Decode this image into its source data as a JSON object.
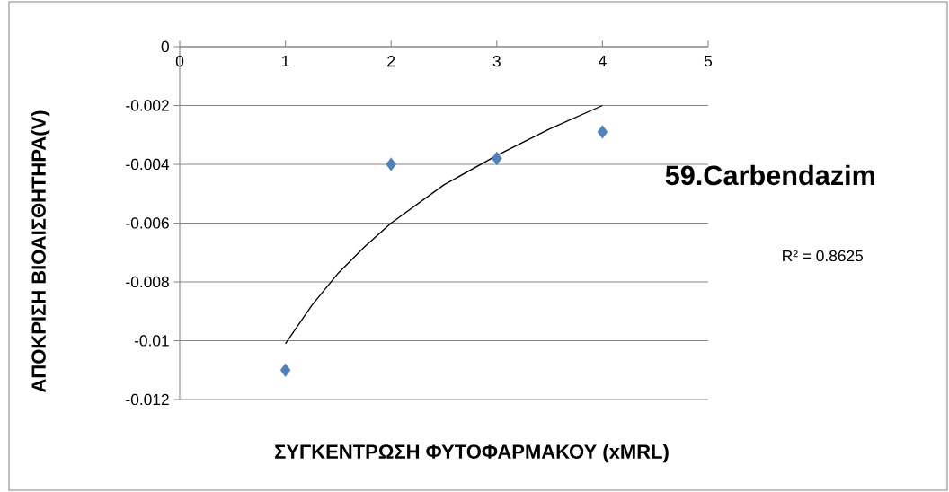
{
  "chart_data": {
    "type": "scatter",
    "title": "59.Carbendazim",
    "xlabel": "ΣΥΓΚΕΝΤΡΩΣΗ ΦΥΤΟΦΑΡΜΑΚΟΥ (xMRL)",
    "ylabel": "ΑΠΟΚΡΙΣΗ ΒΙΟΑΙΣΘΗΤΗΡΑ(V)",
    "annotations": [
      "R² = 0.8625"
    ],
    "x": [
      1,
      2,
      3,
      4
    ],
    "series": [
      {
        "color": "#4f81bd",
        "marker": "diamond",
        "values": [
          -0.011,
          -0.004,
          -0.0038,
          -0.0029
        ]
      },
      {
        "type": "line",
        "color": "#000000",
        "marker": "none",
        "line_style": "solid",
        "x": [
          1,
          1.25,
          1.5,
          1.75,
          2,
          2.5,
          3,
          3.5,
          4
        ],
        "values": [
          -0.0101,
          -0.0088,
          -0.0077,
          -0.0068,
          -0.006,
          -0.0047,
          -0.0037,
          -0.0028,
          -0.002
        ]
      }
    ],
    "xlim": [
      0,
      5
    ],
    "xticks": [
      0,
      1,
      2,
      3,
      4,
      5
    ],
    "ylim": [
      -0.012,
      0
    ],
    "yticks": [
      -0.012,
      -0.01,
      -0.008,
      -0.006,
      -0.004,
      -0.002,
      0
    ],
    "grid": "y"
  }
}
